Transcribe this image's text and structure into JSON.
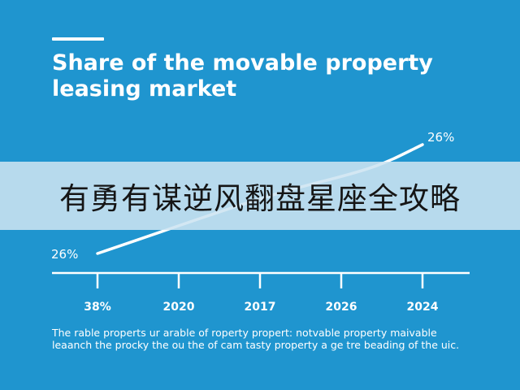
{
  "chart_data": {
    "type": "line",
    "title": "Share of the movable property leasing market",
    "categories": [
      "38%",
      "2020",
      "2017",
      "2026",
      "2024"
    ],
    "series": [
      {
        "values": [
          26,
          null,
          null,
          null,
          26
        ]
      }
    ],
    "start_label": "26%",
    "end_label": "26%",
    "caption": "The rable properts ur arable of roperty propert: notvable property maivable leaanch the procky the ou the of cam tasty property a ge tre beading of the uic.",
    "grid": false,
    "legend": "none"
  },
  "overlay": {
    "banner_text": "有勇有谋逆风翻盘星座全攻略"
  },
  "colors": {
    "background": "#1f95cf",
    "line": "#ffffff",
    "banner": "#cde4f1",
    "banner_text": "#151515"
  }
}
